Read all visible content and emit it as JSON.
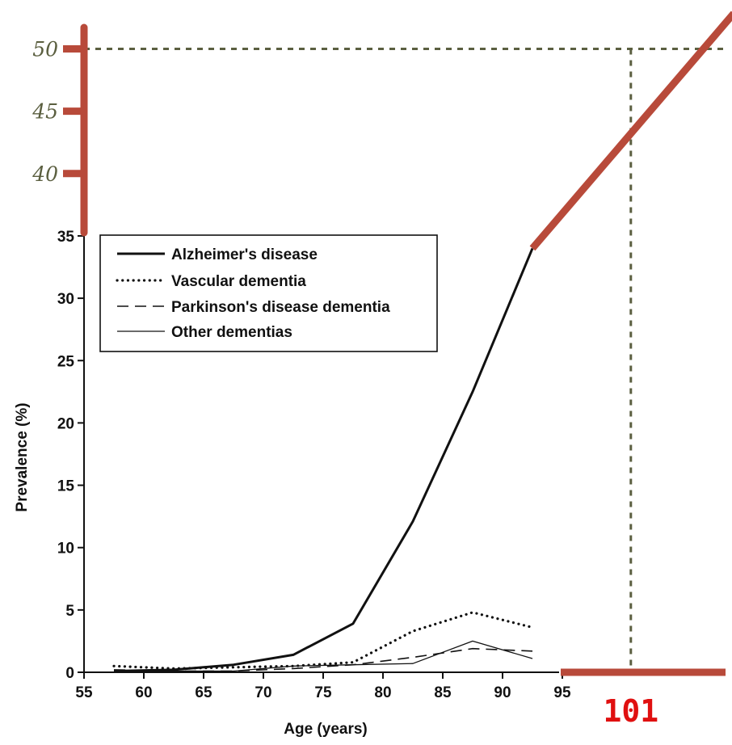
{
  "chart_data": {
    "type": "line",
    "xlabel": "Age (years)",
    "ylabel": "Prevalence (%)",
    "xlim": [
      55,
      100
    ],
    "ylim": [
      0,
      35
    ],
    "x_ticks": [
      "55",
      "60",
      "65",
      "70",
      "75",
      "80",
      "85",
      "90",
      "95"
    ],
    "y_ticks": [
      "0",
      "5",
      "10",
      "15",
      "20",
      "25",
      "30",
      "35"
    ],
    "grid": false,
    "legend_position": "top-left",
    "series": [
      {
        "name": "Alzheimer's disease",
        "style": "solid-thick",
        "x": [
          57.5,
          62.5,
          67.5,
          72.5,
          77.5,
          82.5,
          87.5,
          92.5
        ],
        "y": [
          0.1,
          0.2,
          0.6,
          1.4,
          3.9,
          12.1,
          22.5,
          34.0
        ]
      },
      {
        "name": "Vascular dementia",
        "style": "dotted",
        "x": [
          57.5,
          62.5,
          67.5,
          72.5,
          77.5,
          82.5,
          87.5,
          92.5
        ],
        "y": [
          0.5,
          0.3,
          0.4,
          0.5,
          0.8,
          3.3,
          4.8,
          3.6
        ]
      },
      {
        "name": "Parkinson's disease dementia",
        "style": "dashed",
        "x": [
          57.5,
          62.5,
          67.5,
          72.5,
          77.5,
          82.5,
          87.5,
          92.5
        ],
        "y": [
          0.2,
          0.1,
          0.1,
          0.3,
          0.6,
          1.2,
          1.9,
          1.7
        ]
      },
      {
        "name": "Other dementias",
        "style": "solid-thin",
        "x": [
          57.5,
          62.5,
          67.5,
          72.5,
          77.5,
          82.5,
          87.5,
          92.5
        ],
        "y": [
          0.1,
          0.1,
          0.1,
          0.5,
          0.6,
          0.7,
          2.5,
          1.1
        ]
      }
    ],
    "annotations": {
      "extended_y_ticks": [
        "40",
        "45",
        "50"
      ],
      "extrapolation_line": {
        "x": [
          92.5,
          99.0
        ],
        "y": [
          34.0,
          52.2
        ],
        "color": "#b84a3a"
      },
      "reference_y": 50,
      "reference_x": 101,
      "reference_x_label": "101",
      "reference_color": "#5b5f40",
      "highlight_color": "#b84a3a",
      "label_color": "#e01010"
    }
  }
}
